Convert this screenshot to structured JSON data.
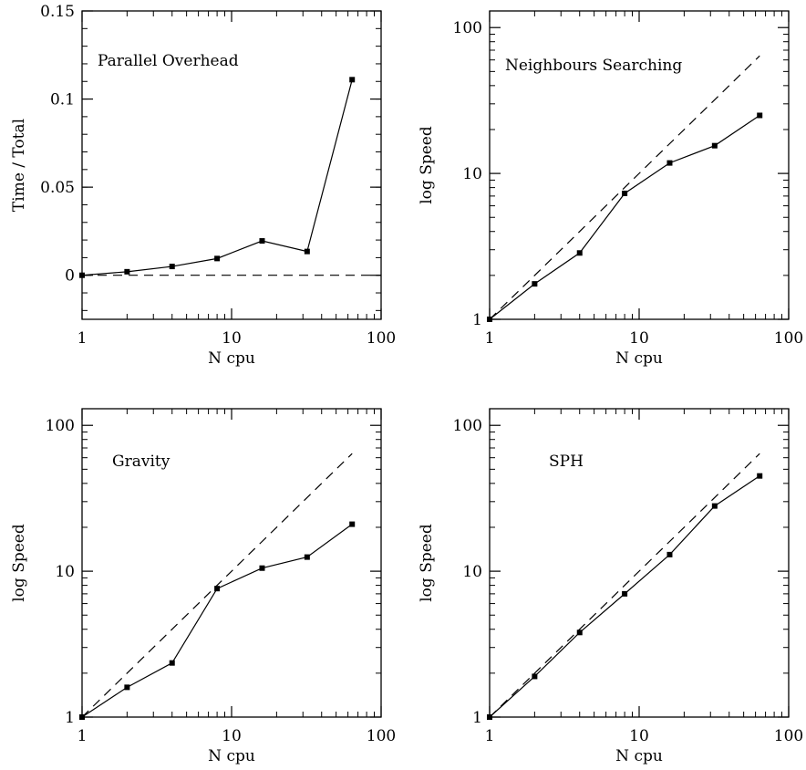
{
  "chart_data": [
    {
      "type": "line",
      "title": "Parallel Overhead",
      "xlabel": "N cpu",
      "ylabel": "Time / Total",
      "xscale": "log",
      "yscale": "linear",
      "xlim": [
        1,
        100
      ],
      "ylim": [
        -0.025,
        0.15
      ],
      "xticks": [
        1,
        10,
        100
      ],
      "xtick_labels": [
        "1",
        "10",
        "100"
      ],
      "yticks": [
        0,
        0.05,
        0.1,
        0.15
      ],
      "ytick_labels": [
        "0",
        "0.05",
        "0.1",
        "0.15"
      ],
      "grid": false,
      "series": [
        {
          "style": "solid",
          "markers": true,
          "x": [
            1,
            2,
            4,
            8,
            16,
            32,
            64
          ],
          "y": [
            0,
            0.002,
            0.005,
            0.0095,
            0.0195,
            0.0135,
            0.111
          ]
        },
        {
          "style": "dashed",
          "markers": false,
          "x": [
            1,
            100
          ],
          "y": [
            0,
            0
          ]
        }
      ]
    },
    {
      "type": "line",
      "title": "Neighbours Searching",
      "xlabel": "N cpu",
      "ylabel": "log Speed",
      "xscale": "log",
      "yscale": "log",
      "xlim": [
        1,
        100
      ],
      "ylim": [
        1,
        130
      ],
      "xticks": [
        1,
        10,
        100
      ],
      "xtick_labels": [
        "1",
        "10",
        "100"
      ],
      "yticks": [
        1,
        10,
        100
      ],
      "ytick_labels": [
        "1",
        "10",
        "100"
      ],
      "grid": false,
      "series": [
        {
          "style": "solid",
          "markers": true,
          "x": [
            1,
            2,
            4,
            8,
            16,
            32,
            64
          ],
          "y": [
            1,
            1.75,
            2.85,
            7.3,
            11.8,
            15.5,
            25
          ]
        },
        {
          "style": "dashed",
          "markers": false,
          "x": [
            1,
            64
          ],
          "y": [
            1,
            64
          ]
        }
      ]
    },
    {
      "type": "line",
      "title": "Gravity",
      "xlabel": "N cpu",
      "ylabel": "log Speed",
      "xscale": "log",
      "yscale": "log",
      "xlim": [
        1,
        100
      ],
      "ylim": [
        1,
        130
      ],
      "xticks": [
        1,
        10,
        100
      ],
      "xtick_labels": [
        "1",
        "10",
        "100"
      ],
      "yticks": [
        1,
        10,
        100
      ],
      "ytick_labels": [
        "1",
        "10",
        "100"
      ],
      "grid": false,
      "series": [
        {
          "style": "solid",
          "markers": true,
          "x": [
            1,
            2,
            4,
            8,
            16,
            32,
            64
          ],
          "y": [
            1,
            1.6,
            2.35,
            7.6,
            10.5,
            12.5,
            21
          ]
        },
        {
          "style": "dashed",
          "markers": false,
          "x": [
            1,
            64
          ],
          "y": [
            1,
            64
          ]
        }
      ]
    },
    {
      "type": "line",
      "title": "SPH",
      "xlabel": "N cpu",
      "ylabel": "log Speed",
      "xscale": "log",
      "yscale": "log",
      "xlim": [
        1,
        100
      ],
      "ylim": [
        1,
        130
      ],
      "xticks": [
        1,
        10,
        100
      ],
      "xtick_labels": [
        "1",
        "10",
        "100"
      ],
      "yticks": [
        1,
        10,
        100
      ],
      "ytick_labels": [
        "1",
        "10",
        "100"
      ],
      "grid": false,
      "series": [
        {
          "style": "solid",
          "markers": true,
          "x": [
            1,
            2,
            4,
            8,
            16,
            32,
            64
          ],
          "y": [
            1,
            1.9,
            3.8,
            7,
            13,
            28,
            45
          ]
        },
        {
          "style": "dashed",
          "markers": false,
          "x": [
            1,
            64
          ],
          "y": [
            1,
            64
          ]
        }
      ]
    }
  ]
}
